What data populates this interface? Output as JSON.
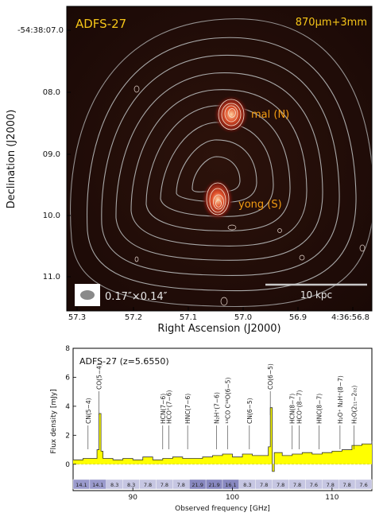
{
  "map": {
    "title": "ADFS-27",
    "band_label": "870μm+3mm",
    "source_north": "mal (N)",
    "source_south": "yong (S)",
    "scale_label": "10 kpc",
    "beam_label": "0.17″×0.14″",
    "xlabel": "Right Ascension (J2000)",
    "ylabel": "Declination (J2000)",
    "xticks": [
      "57.3",
      "57.2",
      "57.1",
      "57.0",
      "56.9",
      "4:36:56.8"
    ],
    "yticks": [
      "-54:38:07.0",
      "08.0",
      "09.0",
      "10.0",
      "11.0"
    ],
    "colors": {
      "title": "#f5c518",
      "label": "#f39c12",
      "background": "#1a0a06",
      "contour": "#b0b0b0"
    }
  },
  "spectrum": {
    "title": "ADFS-27 (z=5.6550)",
    "xlabel": "Observed frequency [GHz]",
    "ylabel": "Flux density [mJy]",
    "xticks": [
      "90",
      "100",
      "110"
    ],
    "yticks": [
      "0",
      "2",
      "4",
      "6",
      "8"
    ],
    "line_labels": [
      "CN(5−4)",
      "CO(5−4)",
      "HCN(7−6)",
      "HCO⁺(7−6)",
      "HNC(7−6)",
      "N₂H⁺(7−6)",
      "¹³CO C¹⁸O(6−5)",
      "CN(6−5)",
      "CO(6−5)",
      "HCN(8−7)",
      "HCO⁺(8−7)",
      "HNC(8−7)",
      "H₂O⁺ N₂H⁺(8−7)",
      "H₂O(2₁₁−2₀₂)"
    ],
    "band_values": [
      "14.1",
      "14.1",
      "8.3",
      "8.3",
      "7.8",
      "7.8",
      "7.8",
      "21.9",
      "21.9",
      "16.1",
      "8.3",
      "7.8",
      "7.8",
      "7.8",
      "7.6",
      "7.8",
      "7.8",
      "7.6"
    ],
    "colors": {
      "fill": "#ffff00",
      "line": "#333333"
    }
  },
  "chart_data": {
    "type": "line",
    "title": "ADFS-27 (z=5.6550)",
    "xlabel": "Observed frequency [GHz]",
    "ylabel": "Flux density [mJy]",
    "xlim": [
      84,
      114
    ],
    "ylim": [
      -1,
      8
    ],
    "x": [
      84,
      85,
      86,
      86.4,
      86.6,
      86.8,
      87,
      88,
      89,
      90,
      91,
      92,
      93,
      94,
      95,
      96,
      97,
      98,
      99,
      100,
      101,
      102,
      103,
      103.6,
      103.8,
      104,
      104.2,
      105,
      106,
      107,
      108,
      109,
      110,
      111,
      112,
      113,
      114
    ],
    "y": [
      0.3,
      0.4,
      0.4,
      1.0,
      3.5,
      0.9,
      0.4,
      0.3,
      0.4,
      0.3,
      0.5,
      0.3,
      0.4,
      0.5,
      0.4,
      0.4,
      0.5,
      0.6,
      0.7,
      0.5,
      0.7,
      0.6,
      0.6,
      1.2,
      3.9,
      -0.5,
      0.8,
      0.6,
      0.7,
      0.8,
      0.7,
      0.8,
      0.9,
      1.0,
      1.3,
      1.4,
      1.6
    ],
    "series": [
      {
        "name": "",
        "values": [
          0.3,
          0.4,
          0.4,
          1.0,
          3.5,
          0.9,
          0.4,
          0.3,
          0.4,
          0.3,
          0.5,
          0.3,
          0.4,
          0.5,
          0.4,
          0.4,
          0.5,
          0.6,
          0.7,
          0.5,
          0.7,
          0.6,
          0.6,
          1.2,
          3.9,
          -0.5,
          0.8,
          0.6,
          0.7,
          0.8,
          0.7,
          0.8,
          0.9,
          1.0,
          1.3,
          1.4,
          1.6
        ]
      }
    ]
  }
}
